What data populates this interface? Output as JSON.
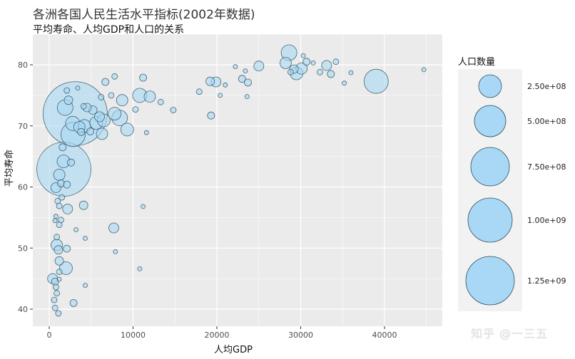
{
  "title": "各洲各国人民生活水平指标(2002年数据)",
  "subtitle": "平均寿命、人均GDP和人口的关系",
  "watermark": "知乎 @一三五",
  "colors": {
    "panel_bg": "#ebebeb",
    "grid": "#ffffff",
    "bubble_fill": "#a8d8f5",
    "bubble_fill_opacity": 0.6,
    "bubble_stroke": "#2f4f5f",
    "legend_bg": "#f2f2f2",
    "tick_text": "#4d4d4d"
  },
  "chart_data": {
    "type": "scatter",
    "title": "各洲各国人民生活水平指标(2002年数据)",
    "subtitle": "平均寿命、人均GDP和人口的关系",
    "xlabel": "人均GDP",
    "ylabel": "平均寿命",
    "xlim": [
      -2000,
      47000
    ],
    "ylim": [
      37,
      84
    ],
    "x_ticks": [
      0,
      10000,
      20000,
      30000,
      40000
    ],
    "x_tick_labels": [
      "0",
      "10000",
      "20000",
      "30000",
      "40000"
    ],
    "y_ticks": [
      40,
      50,
      60,
      70,
      80
    ],
    "y_tick_labels": [
      "40",
      "50",
      "60",
      "70",
      "80"
    ],
    "grid": true,
    "legend": {
      "title": "人口数量",
      "position": "right",
      "entries": [
        {
          "label": "2.50e+08",
          "value": 250000000,
          "r": 16
        },
        {
          "label": "5.00e+08",
          "value": 500000000,
          "r": 22
        },
        {
          "label": "7.50e+08",
          "value": 750000000,
          "r": 27
        },
        {
          "label": "1.00e+09",
          "value": 1000000000,
          "r": 31
        },
        {
          "label": "1.25e+09",
          "value": 1250000000,
          "r": 34
        }
      ]
    },
    "size_variable": "人口数量",
    "points": [
      {
        "gdp": 3100,
        "life": 72.0,
        "r": 45
      },
      {
        "gdp": 1750,
        "life": 62.9,
        "r": 38
      },
      {
        "gdp": 39000,
        "life": 77.3,
        "r": 17
      },
      {
        "gdp": 2850,
        "life": 68.6,
        "r": 17
      },
      {
        "gdp": 1900,
        "life": 73.0,
        "r": 11
      },
      {
        "gdp": 2800,
        "life": 70.4,
        "r": 10
      },
      {
        "gdp": 3600,
        "life": 69.8,
        "r": 8
      },
      {
        "gdp": 4200,
        "life": 70.0,
        "r": 9
      },
      {
        "gdp": 5600,
        "life": 70.5,
        "r": 9
      },
      {
        "gdp": 6000,
        "life": 71.5,
        "r": 7
      },
      {
        "gdp": 6500,
        "life": 70.9,
        "r": 9
      },
      {
        "gdp": 7800,
        "life": 72.0,
        "r": 9
      },
      {
        "gdp": 8400,
        "life": 71.3,
        "r": 11
      },
      {
        "gdp": 9300,
        "life": 69.4,
        "r": 9
      },
      {
        "gdp": 10800,
        "life": 75.0,
        "r": 10
      },
      {
        "gdp": 12000,
        "life": 74.8,
        "r": 8
      },
      {
        "gdp": 8700,
        "life": 74.2,
        "r": 8
      },
      {
        "gdp": 6300,
        "life": 68.7,
        "r": 8
      },
      {
        "gdp": 4900,
        "life": 69.1,
        "r": 5
      },
      {
        "gdp": 5200,
        "life": 72.6,
        "r": 6
      },
      {
        "gdp": 4100,
        "life": 73.2,
        "r": 4
      },
      {
        "gdp": 6200,
        "life": 74.7,
        "r": 4
      },
      {
        "gdp": 6700,
        "life": 77.2,
        "r": 5
      },
      {
        "gdp": 7400,
        "life": 75.0,
        "r": 4
      },
      {
        "gdp": 7800,
        "life": 78.1,
        "r": 4
      },
      {
        "gdp": 10300,
        "life": 72.7,
        "r": 4
      },
      {
        "gdp": 11200,
        "life": 77.9,
        "r": 5
      },
      {
        "gdp": 11600,
        "life": 68.9,
        "r": 3
      },
      {
        "gdp": 13300,
        "life": 73.9,
        "r": 4
      },
      {
        "gdp": 14800,
        "life": 72.6,
        "r": 4
      },
      {
        "gdp": 17900,
        "life": 75.6,
        "r": 4
      },
      {
        "gdp": 19200,
        "life": 77.3,
        "r": 6
      },
      {
        "gdp": 19900,
        "life": 77.2,
        "r": 7
      },
      {
        "gdp": 19300,
        "life": 71.7,
        "r": 5
      },
      {
        "gdp": 20400,
        "life": 75.0,
        "r": 3
      },
      {
        "gdp": 21000,
        "life": 76.7,
        "r": 3
      },
      {
        "gdp": 22200,
        "life": 79.7,
        "r": 3
      },
      {
        "gdp": 23000,
        "life": 77.7,
        "r": 5
      },
      {
        "gdp": 23400,
        "life": 79.0,
        "r": 3
      },
      {
        "gdp": 23700,
        "life": 77.1,
        "r": 5
      },
      {
        "gdp": 23600,
        "life": 74.8,
        "r": 3
      },
      {
        "gdp": 25000,
        "life": 79.8,
        "r": 7
      },
      {
        "gdp": 28200,
        "life": 80.3,
        "r": 8
      },
      {
        "gdp": 28600,
        "life": 82.0,
        "r": 11
      },
      {
        "gdp": 29200,
        "life": 79.3,
        "r": 6
      },
      {
        "gdp": 29500,
        "life": 78.6,
        "r": 9
      },
      {
        "gdp": 30100,
        "life": 79.4,
        "r": 8
      },
      {
        "gdp": 30300,
        "life": 81.5,
        "r": 3
      },
      {
        "gdp": 30700,
        "life": 80.5,
        "r": 5
      },
      {
        "gdp": 31500,
        "life": 80.3,
        "r": 3
      },
      {
        "gdp": 32300,
        "life": 78.8,
        "r": 4
      },
      {
        "gdp": 33100,
        "life": 79.9,
        "r": 7
      },
      {
        "gdp": 33600,
        "life": 78.5,
        "r": 5
      },
      {
        "gdp": 34200,
        "life": 80.5,
        "r": 4
      },
      {
        "gdp": 35200,
        "life": 77.0,
        "r": 3
      },
      {
        "gdp": 36000,
        "life": 78.7,
        "r": 3
      },
      {
        "gdp": 44700,
        "life": 79.2,
        "r": 3
      },
      {
        "gdp": 28800,
        "life": 78.8,
        "r": 4
      },
      {
        "gdp": 2300,
        "life": 74.2,
        "r": 6
      },
      {
        "gdp": 2100,
        "life": 75.8,
        "r": 4
      },
      {
        "gdp": 3400,
        "life": 76.2,
        "r": 3
      },
      {
        "gdp": 4500,
        "life": 73.0,
        "r": 6
      },
      {
        "gdp": 3800,
        "life": 69.0,
        "r": 5
      },
      {
        "gdp": 1600,
        "life": 66.5,
        "r": 5
      },
      {
        "gdp": 1700,
        "life": 64.2,
        "r": 9
      },
      {
        "gdp": 1200,
        "life": 62.0,
        "r": 8
      },
      {
        "gdp": 2600,
        "life": 64.0,
        "r": 5
      },
      {
        "gdp": 1400,
        "life": 60.6,
        "r": 5
      },
      {
        "gdp": 800,
        "life": 59.9,
        "r": 7
      },
      {
        "gdp": 2100,
        "life": 60.4,
        "r": 5
      },
      {
        "gdp": 1500,
        "life": 58.3,
        "r": 4
      },
      {
        "gdp": 1000,
        "life": 57.7,
        "r": 4
      },
      {
        "gdp": 1200,
        "life": 56.9,
        "r": 4
      },
      {
        "gdp": 2200,
        "life": 56.4,
        "r": 7
      },
      {
        "gdp": 4100,
        "life": 57.0,
        "r": 6
      },
      {
        "gdp": 11200,
        "life": 56.8,
        "r": 3
      },
      {
        "gdp": 800,
        "life": 55.2,
        "r": 3
      },
      {
        "gdp": 700,
        "life": 54.5,
        "r": 3
      },
      {
        "gdp": 1400,
        "life": 54.6,
        "r": 4
      },
      {
        "gdp": 1200,
        "life": 53.8,
        "r": 4
      },
      {
        "gdp": 3200,
        "life": 53.0,
        "r": 3
      },
      {
        "gdp": 7700,
        "life": 53.3,
        "r": 7
      },
      {
        "gdp": 4300,
        "life": 51.6,
        "r": 3
      },
      {
        "gdp": 900,
        "life": 51.8,
        "r": 4
      },
      {
        "gdp": 900,
        "life": 50.5,
        "r": 8
      },
      {
        "gdp": 1100,
        "life": 49.7,
        "r": 6
      },
      {
        "gdp": 2100,
        "life": 49.9,
        "r": 5
      },
      {
        "gdp": 7900,
        "life": 49.4,
        "r": 3
      },
      {
        "gdp": 1200,
        "life": 47.9,
        "r": 6
      },
      {
        "gdp": 2000,
        "life": 46.7,
        "r": 9
      },
      {
        "gdp": 1200,
        "life": 46.1,
        "r": 4
      },
      {
        "gdp": 10800,
        "life": 46.6,
        "r": 3
      },
      {
        "gdp": 400,
        "life": 45.0,
        "r": 7
      },
      {
        "gdp": 700,
        "life": 44.5,
        "r": 5
      },
      {
        "gdp": 800,
        "life": 43.6,
        "r": 4
      },
      {
        "gdp": 900,
        "life": 42.6,
        "r": 4
      },
      {
        "gdp": 4300,
        "life": 43.9,
        "r": 3
      },
      {
        "gdp": 1200,
        "life": 44.9,
        "r": 3
      },
      {
        "gdp": 600,
        "life": 41.5,
        "r": 4
      },
      {
        "gdp": 2900,
        "life": 41.0,
        "r": 5
      },
      {
        "gdp": 700,
        "life": 40.2,
        "r": 4
      },
      {
        "gdp": 1100,
        "life": 39.3,
        "r": 4
      }
    ]
  }
}
